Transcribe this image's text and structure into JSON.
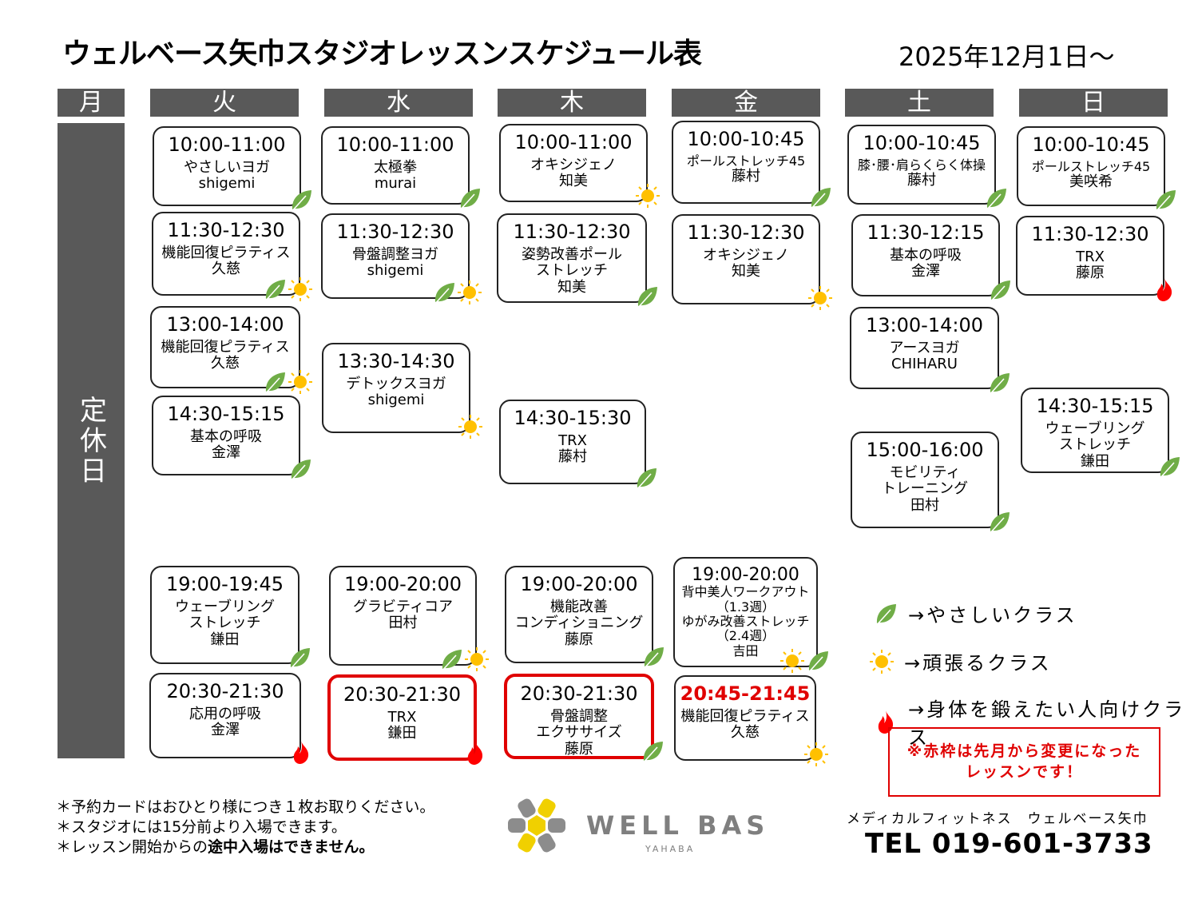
{
  "header": {
    "title": "ウェルベース矢巾スタジオレッスンスケジュール表",
    "date": "2025年12月1日～"
  },
  "days": [
    "月",
    "火",
    "水",
    "木",
    "金",
    "土",
    "日"
  ],
  "closed_label": "定休日",
  "colors": {
    "header_bg": "#595959",
    "leaf": "#70ad47",
    "sun": "#ffc000",
    "fire": "#ff0000",
    "changed_border": "#e00000"
  },
  "lessons": [
    {
      "day": "火",
      "time": "10:00-11:00",
      "lines": [
        "やさしいヨガ",
        "shigemi"
      ],
      "icons": [
        "leaf"
      ]
    },
    {
      "day": "火",
      "time": "11:30-12:30",
      "lines": [
        "機能回復ピラティス",
        "久慈"
      ],
      "icons": [
        "leaf",
        "sun"
      ]
    },
    {
      "day": "火",
      "time": "13:00-14:00",
      "lines": [
        "機能回復ピラティス",
        "久慈"
      ],
      "icons": [
        "leaf",
        "sun"
      ]
    },
    {
      "day": "火",
      "time": "14:30-15:15",
      "lines": [
        "基本の呼吸",
        "金澤"
      ],
      "icons": [
        "leaf"
      ]
    },
    {
      "day": "火",
      "time": "19:00-19:45",
      "lines": [
        "ウェーブリング",
        "ストレッチ",
        "鎌田"
      ],
      "icons": [
        "leaf"
      ]
    },
    {
      "day": "火",
      "time": "20:30-21:30",
      "lines": [
        "応用の呼吸",
        "金澤"
      ],
      "icons": [
        "fire"
      ]
    },
    {
      "day": "水",
      "time": "10:00-11:00",
      "lines": [
        "太極拳",
        "murai"
      ],
      "icons": [
        "leaf"
      ]
    },
    {
      "day": "水",
      "time": "11:30-12:30",
      "lines": [
        "骨盤調整ヨガ",
        "shigemi"
      ],
      "icons": [
        "leaf",
        "sun"
      ]
    },
    {
      "day": "水",
      "time": "13:30-14:30",
      "lines": [
        "デトックスヨガ",
        "shigemi"
      ],
      "icons": [
        "sun"
      ]
    },
    {
      "day": "水",
      "time": "19:00-20:00",
      "lines": [
        "グラビティコア",
        "田村"
      ],
      "icons": [
        "leaf",
        "sun"
      ]
    },
    {
      "day": "水",
      "time": "20:30-21:30",
      "lines": [
        "TRX",
        "鎌田"
      ],
      "icons": [
        "fire"
      ],
      "changed": true
    },
    {
      "day": "木",
      "time": "10:00-11:00",
      "lines": [
        "オキシジェノ",
        "知美"
      ],
      "icons": [
        "sun"
      ]
    },
    {
      "day": "木",
      "time": "11:30-12:30",
      "lines": [
        "姿勢改善ポール",
        "ストレッチ",
        "知美"
      ],
      "icons": [
        "leaf"
      ]
    },
    {
      "day": "木",
      "time": "14:30-15:30",
      "lines": [
        "TRX",
        "藤村"
      ],
      "icons": [
        "leaf"
      ]
    },
    {
      "day": "木",
      "time": "19:00-20:00",
      "lines": [
        "機能改善",
        "コンディショニング",
        "藤原"
      ],
      "icons": [
        "leaf"
      ]
    },
    {
      "day": "木",
      "time": "20:30-21:30",
      "lines": [
        "骨盤調整",
        "エクササイズ",
        "藤原"
      ],
      "icons": [
        "leaf"
      ],
      "changed": true
    },
    {
      "day": "金",
      "time": "10:00-10:45",
      "lines": [
        "ポールストレッチ45",
        "藤村"
      ],
      "icons": [
        "leaf"
      ]
    },
    {
      "day": "金",
      "time": "11:30-12:30",
      "lines": [
        "オキシジェノ",
        "知美"
      ],
      "icons": [
        "sun"
      ]
    },
    {
      "day": "金",
      "time": "19:00-20:00",
      "lines": [
        "背中美人ワークアウト",
        "（1.3週）",
        "ゆがみ改善ストレッチ",
        "（2.4週）",
        "吉田"
      ],
      "icons": [
        "sun",
        "leaf"
      ]
    },
    {
      "day": "金",
      "time": "20:45-21:45",
      "lines": [
        "機能回復ピラティス",
        "久慈"
      ],
      "icons": [
        "sun"
      ],
      "time_changed": true
    },
    {
      "day": "土",
      "time": "10:00-10:45",
      "lines": [
        "膝･腰･肩らくらく体操",
        "藤村"
      ],
      "icons": [
        "leaf"
      ]
    },
    {
      "day": "土",
      "time": "11:30-12:15",
      "lines": [
        "基本の呼吸",
        "金澤"
      ],
      "icons": [
        "leaf"
      ]
    },
    {
      "day": "土",
      "time": "13:00-14:00",
      "lines": [
        "アースヨガ",
        "CHIHARU"
      ],
      "icons": [
        "leaf"
      ]
    },
    {
      "day": "土",
      "time": "15:00-16:00",
      "lines": [
        "モビリティ",
        "トレーニング",
        "田村"
      ],
      "icons": [
        "leaf"
      ]
    },
    {
      "day": "日",
      "time": "10:00-10:45",
      "lines": [
        "ポールストレッチ45",
        "美咲希"
      ],
      "icons": [
        "leaf"
      ]
    },
    {
      "day": "日",
      "time": "11:30-12:30",
      "lines": [
        "TRX",
        "藤原"
      ],
      "icons": [
        "fire"
      ]
    },
    {
      "day": "日",
      "time": "14:30-15:15",
      "lines": [
        "ウェーブリング",
        "ストレッチ",
        "鎌田"
      ],
      "icons": [
        "leaf"
      ]
    }
  ],
  "legend": [
    {
      "icon": "leaf",
      "label": "→やさしいクラス"
    },
    {
      "icon": "sun",
      "label": "→頑張るクラス"
    },
    {
      "icon": "fire",
      "label": "→身体を鍛えたい人向けクラス"
    }
  ],
  "notice": {
    "line1": "※赤枠は先月から変更になった",
    "line2": "レッスンです！"
  },
  "notes": {
    "n1": "＊予約カードはおひとり様につき１枚お取りください。",
    "n2": "＊スタジオには15分前より入場できます。",
    "n3_pre": "＊レッスン開始からの",
    "n3_bold": "途中入場はできません。"
  },
  "logo": {
    "name": "WELL BASE",
    "sub": "YAHABA"
  },
  "footer": {
    "company": "メディカルフィットネス　ウェルベース矢巾",
    "tel": "TEL 019-601-3733"
  }
}
